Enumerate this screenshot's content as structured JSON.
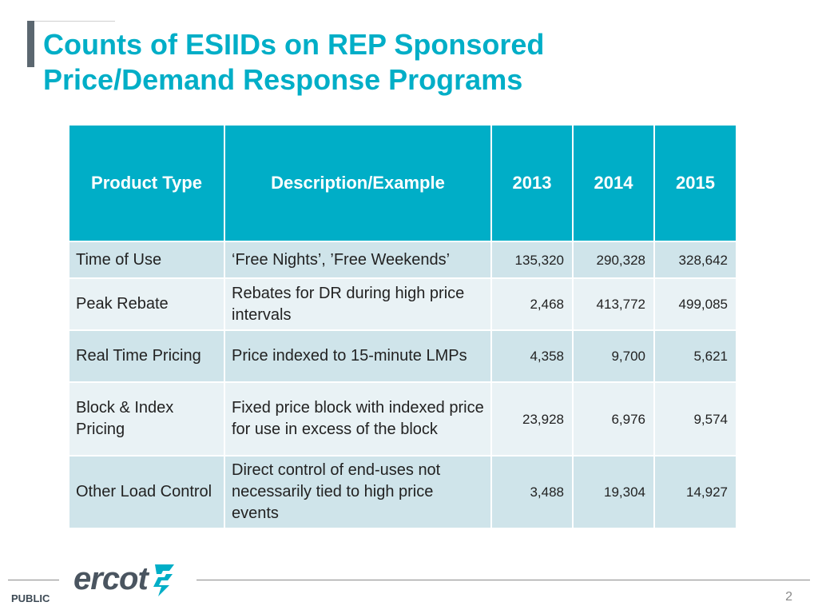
{
  "slide": {
    "title_line1": "Counts of ESIIDs on REP Sponsored",
    "title_line2": "Price/Demand Response Programs"
  },
  "table": {
    "headers": {
      "product_type": "Product Type",
      "description": "Description/Example",
      "y2013": "2013",
      "y2014": "2014",
      "y2015": "2015"
    },
    "rows": [
      {
        "product": "Time of Use",
        "description": "‘Free Nights’, ’Free Weekends’",
        "y2013": "135,320",
        "y2014": "290,328",
        "y2015": "328,642"
      },
      {
        "product": "Peak Rebate",
        "description": "Rebates for DR during high price intervals",
        "y2013": "2,468",
        "y2014": "413,772",
        "y2015": "499,085"
      },
      {
        "product": "Real Time Pricing",
        "description": "Price indexed to 15-minute LMPs",
        "y2013": "4,358",
        "y2014": "9,700",
        "y2015": "5,621"
      },
      {
        "product": "Block & Index Pricing",
        "description": "Fixed price block with indexed price for use in excess of the block",
        "y2013": "23,928",
        "y2014": "6,976",
        "y2015": "9,574"
      },
      {
        "product": "Other Load Control",
        "description": "Direct control of end-uses not necessarily tied to high price events",
        "y2013": "3,488",
        "y2014": "19,304",
        "y2015": "14,927"
      }
    ]
  },
  "footer": {
    "logo_text": "ercot",
    "classification": "PUBLIC",
    "page_number": "2"
  },
  "colors": {
    "accent": "#00aec7",
    "row_dark": "#cfe4ea",
    "row_light": "#e9f2f5",
    "title_bar": "#5b6770"
  }
}
